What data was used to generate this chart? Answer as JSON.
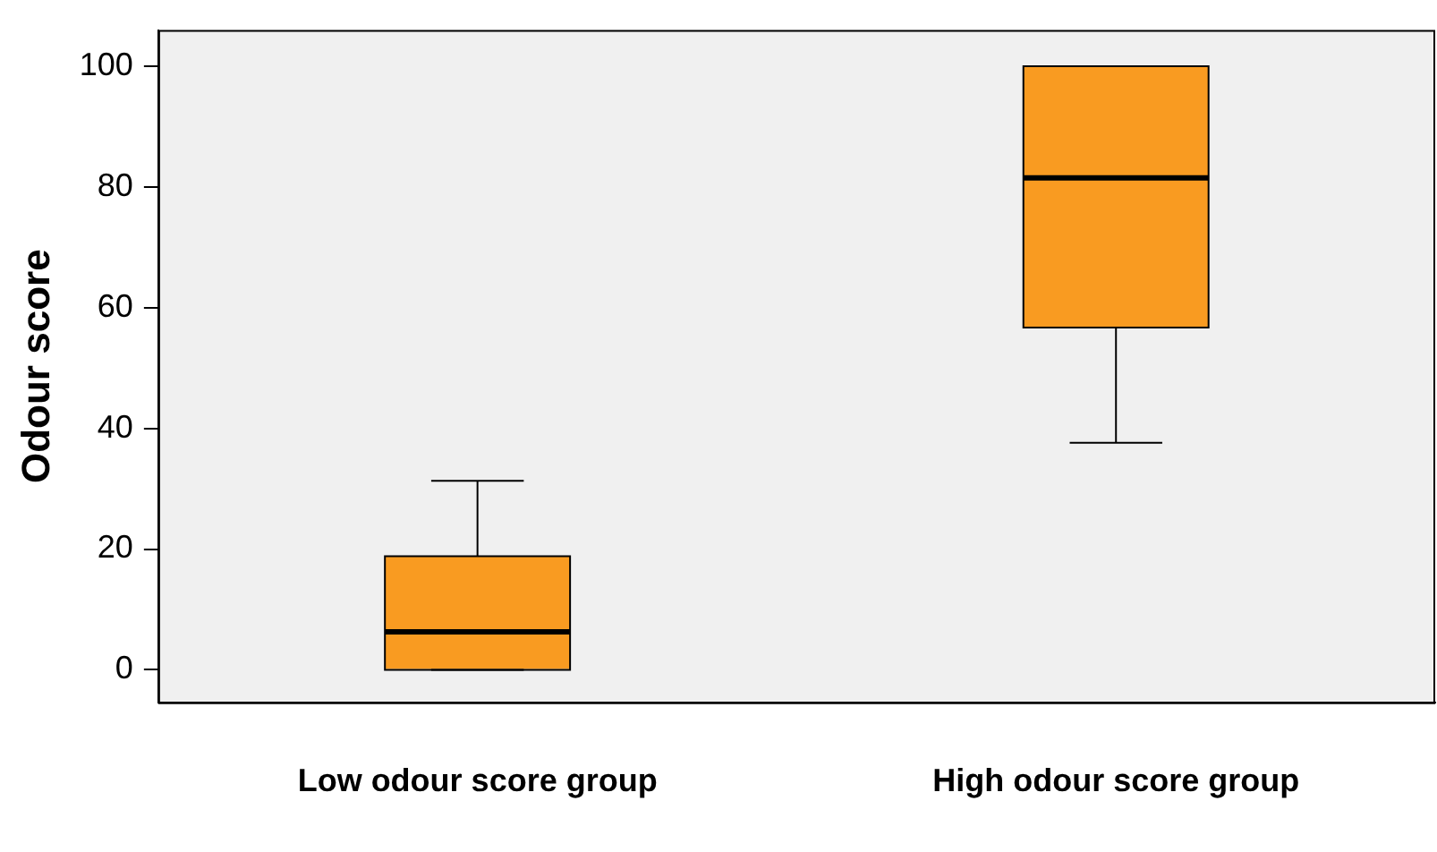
{
  "chart_data": {
    "type": "box",
    "ylabel": "Odour score",
    "categories": [
      "Low odour score group",
      "High odour score group"
    ],
    "color": "#f99b21",
    "boxes": [
      {
        "low": 0,
        "q1": 0,
        "median": 6.3,
        "q3": 18.8,
        "high": 31.3
      },
      {
        "low": 37.6,
        "q1": 56.7,
        "median": 81.5,
        "q3": 100,
        "high": 100
      }
    ],
    "ylim": [
      -5.4,
      106
    ],
    "yticks": [
      0,
      20,
      40,
      60,
      80,
      100
    ]
  }
}
